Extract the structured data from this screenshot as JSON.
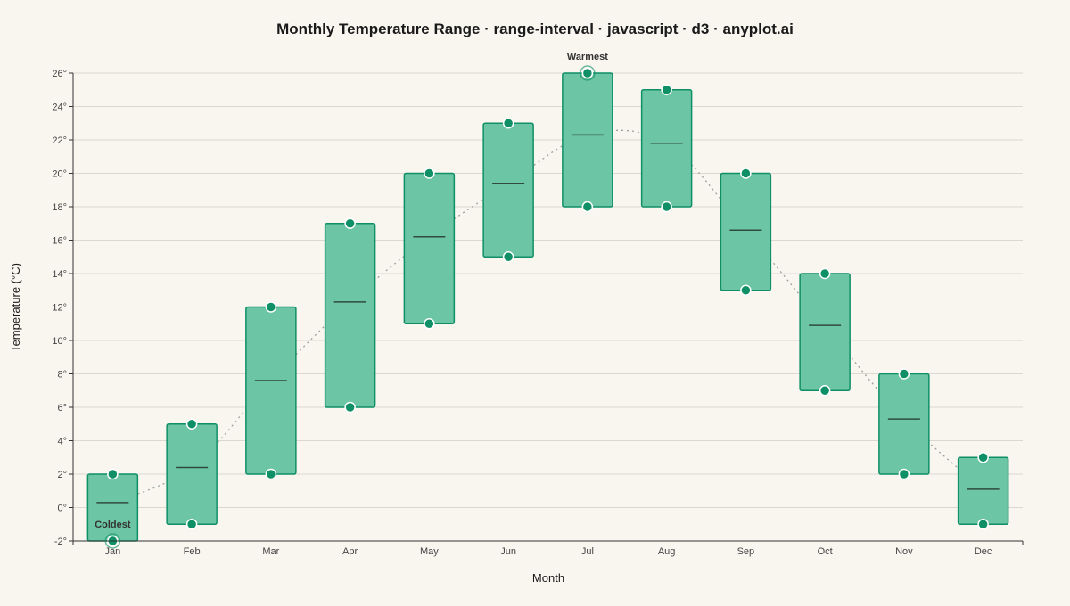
{
  "chart_data": {
    "type": "range-interval",
    "title": "Monthly Temperature Range · range-interval · javascript · d3 · anyplot.ai",
    "xlabel": "Month",
    "ylabel": "Temperature (°C)",
    "ylim": [
      -2,
      26
    ],
    "yticks": [
      -2,
      0,
      2,
      4,
      6,
      8,
      10,
      12,
      14,
      16,
      18,
      20,
      22,
      24,
      26
    ],
    "y_tick_suffix": "°",
    "grid": true,
    "categories": [
      "Jan",
      "Feb",
      "Mar",
      "Apr",
      "May",
      "Jun",
      "Jul",
      "Aug",
      "Sep",
      "Oct",
      "Nov",
      "Dec"
    ],
    "min": [
      -2,
      -1,
      2,
      6,
      11,
      15,
      18,
      18,
      13,
      7,
      2,
      -1
    ],
    "max": [
      2,
      5,
      12,
      17,
      20,
      23,
      26,
      25,
      20,
      14,
      8,
      3
    ],
    "mean": [
      0.3,
      2.4,
      7.6,
      12.3,
      16.2,
      19.4,
      22.3,
      21.8,
      16.6,
      10.9,
      5.3,
      1.1
    ],
    "annotations": [
      {
        "label": "Coldest",
        "category": "Jan",
        "value": -2
      },
      {
        "label": "Warmest",
        "category": "Jul",
        "value": 26
      }
    ],
    "colors": {
      "fill": "#6cc5a4",
      "stroke": "#0e8f66",
      "dot": "#0e8f66",
      "mean_line": "#2f4a40",
      "trend": "#9aa39e",
      "grid": "#dcd8d0",
      "background": "#f9f6f0"
    }
  }
}
